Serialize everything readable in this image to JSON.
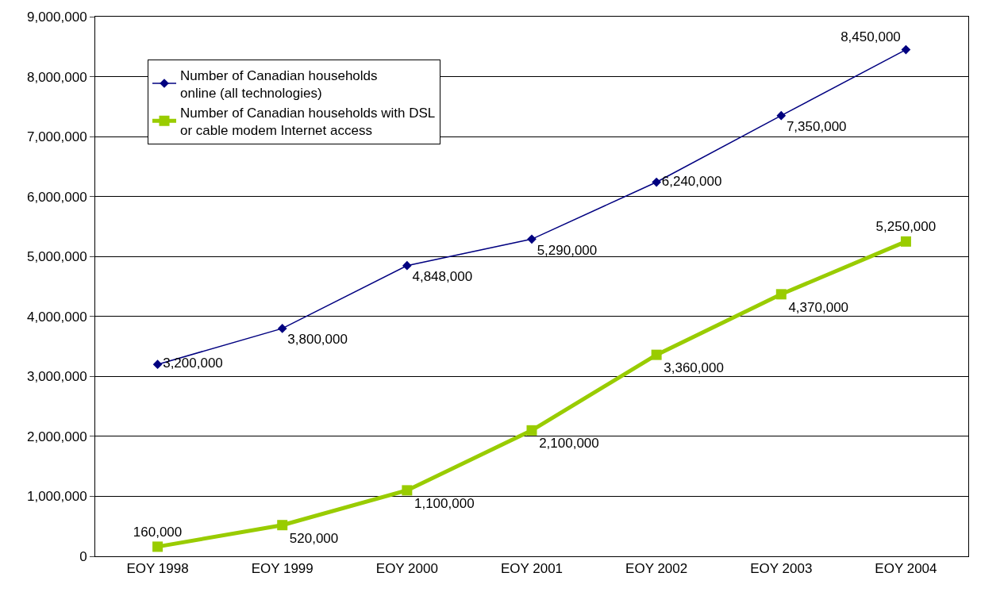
{
  "chart_data": {
    "type": "line",
    "categories": [
      "EOY 1998",
      "EOY 1999",
      "EOY 2000",
      "EOY 2001",
      "EOY 2002",
      "EOY 2003",
      "EOY 2004"
    ],
    "series": [
      {
        "name": "Number of Canadian households online (all technologies)",
        "color": "#000080",
        "marker": "diamond",
        "values": [
          3200000,
          3800000,
          4848000,
          5290000,
          6240000,
          7350000,
          8450000
        ],
        "value_labels": [
          "3,200,000",
          "3,800,000",
          "4,848,000",
          "5,290,000",
          "6,240,000",
          "7,350,000",
          "8,450,000"
        ]
      },
      {
        "name": "Number of Canadian households with DSL or cable modem Internet access",
        "color": "#99cc00",
        "marker": "square",
        "values": [
          160000,
          520000,
          1100000,
          2100000,
          3360000,
          4370000,
          5250000
        ],
        "value_labels": [
          "160,000",
          "520,000",
          "1,100,000",
          "2,100,000",
          "3,360,000",
          "4,370,000",
          "5,250,000"
        ]
      }
    ],
    "ylim": [
      0,
      9000000
    ],
    "yticks": [
      0,
      {
        "value": 1000000,
        "label": "1,000,000"
      },
      {
        "value": 2000000,
        "label": "2,000,000"
      },
      {
        "value": 3000000,
        "label": "3,000,000"
      },
      {
        "value": 4000000,
        "label": "4,000,000"
      },
      {
        "value": 5000000,
        "label": "5,000,000"
      },
      {
        "value": 6000000,
        "label": "6,000,000"
      },
      {
        "value": 7000000,
        "label": "7,000,000"
      },
      {
        "value": 8000000,
        "label": "8,000,000"
      },
      {
        "value": 9000000,
        "label": "9,000,000"
      }
    ],
    "grid": "y",
    "legend": "top left"
  }
}
